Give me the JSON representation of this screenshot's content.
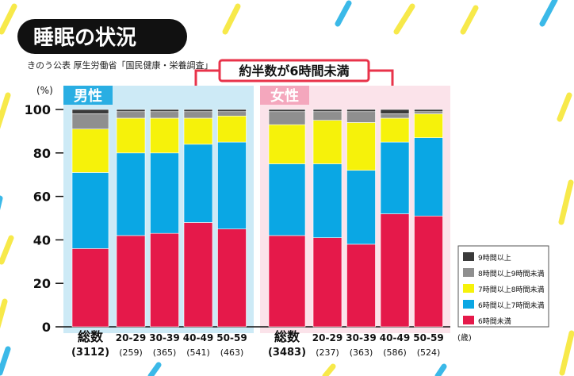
{
  "header": {
    "title": "睡眠の状況",
    "source": "きのう公表 厚生労働省「国民健康・栄養調査」",
    "callout": "約半数が6時間未満"
  },
  "colors": {
    "background": "#ffffff",
    "stripe": "#f7e94a",
    "stripe_alt": "#3bb9e8",
    "title_bg": "#111111",
    "title_text": "#ffffff",
    "callout_border": "#e8334a",
    "male_panel": "#cdeaf6",
    "female_panel": "#fbe3ea",
    "male_label_bg": "#29aee3",
    "female_label_bg": "#f4a7bd"
  },
  "chart_data": {
    "type": "bar",
    "stacked": true,
    "y_unit_label": "(%)",
    "ylim": [
      0,
      100
    ],
    "yticks": [
      0,
      20,
      40,
      60,
      80,
      100
    ],
    "age_unit": "(歳)",
    "legend_position": "bottom-right",
    "groups": [
      {
        "label": "男性",
        "categories": [
          "総数",
          "20-29",
          "30-39",
          "40-49",
          "50-59"
        ],
        "counts": [
          "(3112)",
          "(259)",
          "(365)",
          "(541)",
          "(463)"
        ]
      },
      {
        "label": "女性",
        "categories": [
          "総数",
          "20-29",
          "30-39",
          "40-49",
          "50-59"
        ],
        "counts": [
          "(3483)",
          "(237)",
          "(363)",
          "(586)",
          "(524)"
        ]
      }
    ],
    "series": [
      {
        "name": "6時間未満",
        "color": "#e5194a",
        "values": [
          36,
          42,
          43,
          48,
          45,
          42,
          41,
          38,
          52,
          51
        ]
      },
      {
        "name": "6時間以上7時間未満",
        "color": "#0aa7e4",
        "values": [
          35,
          38,
          37,
          36,
          40,
          33,
          34,
          34,
          33,
          36
        ]
      },
      {
        "name": "7時間以上8時間未満",
        "color": "#f6f20a",
        "values": [
          20,
          16,
          16,
          12,
          12,
          18,
          20,
          22,
          11,
          11
        ]
      },
      {
        "name": "8時間以上9時間未満",
        "color": "#8f8f8f",
        "values": [
          7,
          3,
          3,
          3,
          2,
          6,
          4,
          5,
          2,
          1
        ]
      },
      {
        "name": "9時間以上",
        "color": "#3a3a3a",
        "values": [
          2,
          1,
          1,
          1,
          1,
          1,
          1,
          1,
          2,
          1
        ]
      }
    ]
  }
}
